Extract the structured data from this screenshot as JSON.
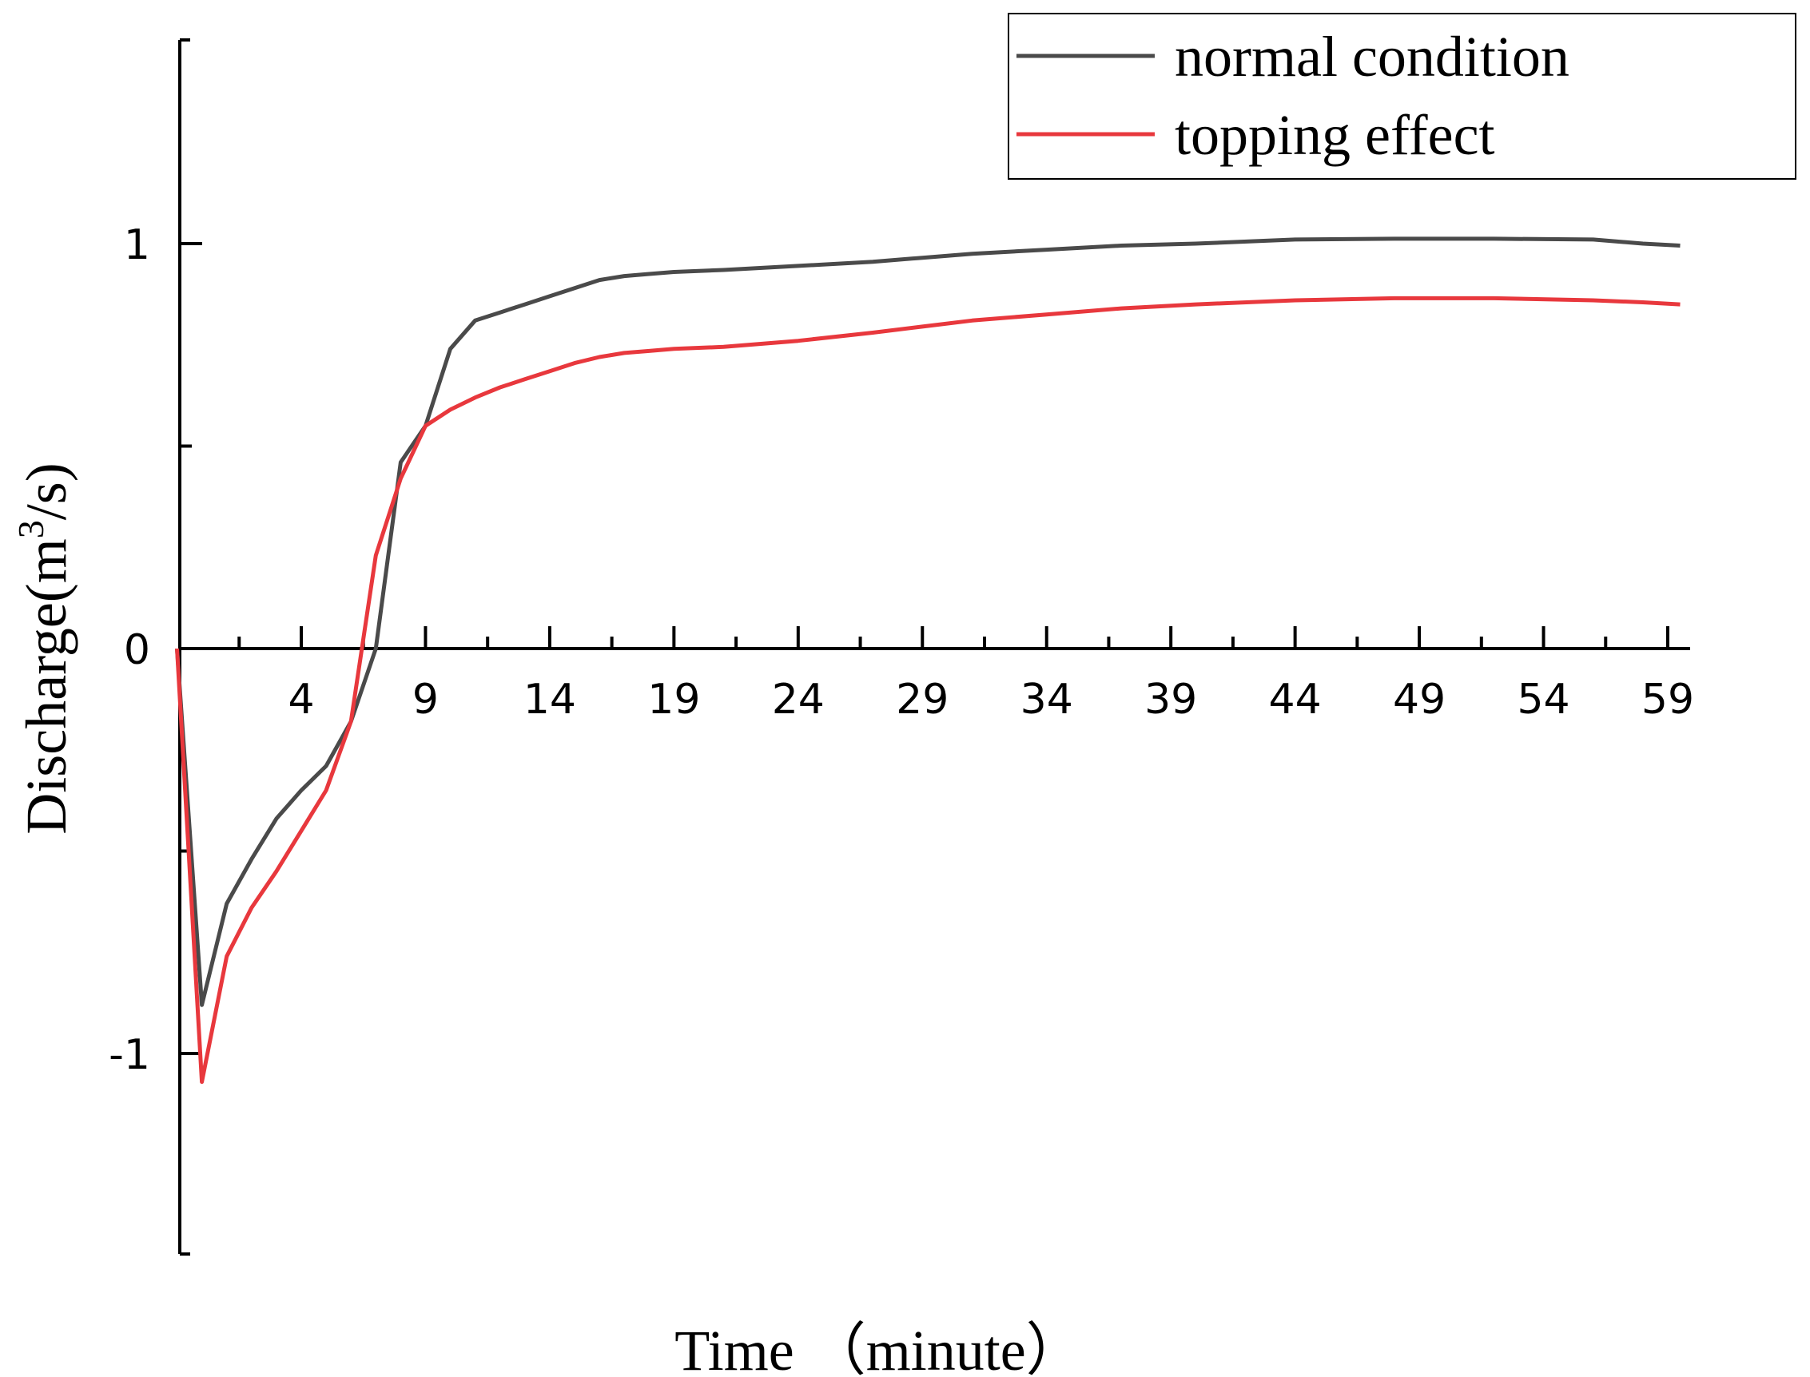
{
  "chart_data": {
    "type": "line",
    "title": "",
    "xlabel": "Time （minute）",
    "ylabel": "Discharge(m",
    "ylabel_superscript": "3",
    "ylabel_suffix": "/s)",
    "xlim": [
      -3,
      61
    ],
    "ylim": [
      -1.5,
      1.5
    ],
    "xticks": [
      4,
      9,
      14,
      19,
      24,
      29,
      34,
      39,
      44,
      49,
      54,
      59
    ],
    "xtick_labels": [
      "4",
      "9",
      "14",
      "19",
      "24",
      "29",
      "34",
      "39",
      "44",
      "49",
      "54",
      "59"
    ],
    "yticks": [
      -1,
      0,
      1
    ],
    "ytick_labels": [
      "-1",
      "0",
      "1"
    ],
    "legend_position": "top-right",
    "series": [
      {
        "name": "normal condition",
        "color": "#4a4a4a",
        "x": [
          -1,
          0,
          1,
          2,
          3,
          4,
          5,
          6,
          7,
          8,
          9,
          10,
          11,
          12,
          13,
          14,
          15,
          16,
          17,
          18,
          19,
          21,
          24,
          27,
          29,
          31,
          34,
          37,
          40,
          44,
          48,
          52,
          56,
          58,
          59.5
        ],
        "y": [
          0,
          -0.88,
          -0.63,
          -0.52,
          -0.42,
          -0.35,
          -0.29,
          -0.18,
          0,
          0.46,
          0.55,
          0.74,
          0.81,
          0.83,
          0.85,
          0.87,
          0.89,
          0.91,
          0.92,
          0.925,
          0.93,
          0.935,
          0.945,
          0.955,
          0.965,
          0.975,
          0.985,
          0.995,
          1.0,
          1.01,
          1.012,
          1.012,
          1.01,
          1.0,
          0.995
        ]
      },
      {
        "name": "topping effect",
        "color": "#e8383d",
        "x": [
          -1,
          0,
          1,
          2,
          3,
          4,
          5,
          6,
          7,
          8,
          9,
          10,
          11,
          12,
          13,
          14,
          15,
          16,
          17,
          18,
          19,
          21,
          24,
          27,
          29,
          31,
          34,
          37,
          40,
          44,
          48,
          52,
          56,
          58,
          59.5
        ],
        "y": [
          0,
          -1.07,
          -0.76,
          -0.64,
          -0.55,
          -0.45,
          -0.35,
          -0.18,
          0.23,
          0.42,
          0.55,
          0.59,
          0.62,
          0.645,
          0.665,
          0.685,
          0.705,
          0.72,
          0.73,
          0.735,
          0.74,
          0.745,
          0.76,
          0.78,
          0.795,
          0.81,
          0.825,
          0.84,
          0.85,
          0.86,
          0.865,
          0.865,
          0.86,
          0.855,
          0.85
        ]
      }
    ]
  }
}
